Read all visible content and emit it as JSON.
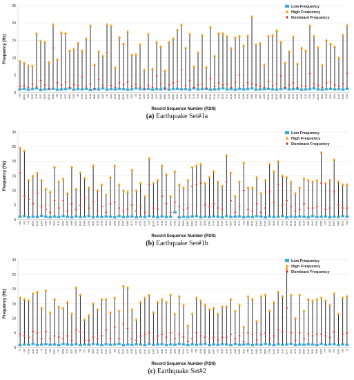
{
  "panels": [
    {
      "caption_letter": "(a)",
      "caption_text": "Earthquake Set#1a",
      "chart_data": {
        "type": "scatter",
        "ylabel": "Frequency (Hz)",
        "xlabel": "Record Sequence Number (RSN)",
        "ylim": [
          0,
          25
        ],
        "yticks": [
          0,
          5,
          10,
          15,
          20,
          25
        ],
        "grid": true,
        "legend_position": "top-right",
        "series": [
          {
            "name": "Low Frequency",
            "color": "#3fa9d6",
            "marker": "square"
          },
          {
            "name": "High Frequency",
            "color": "#f4a623",
            "marker": "triangle"
          },
          {
            "name": "Dominant Frequency",
            "color": "#e02b2b",
            "marker": "diamond"
          }
        ],
        "x": [
          "231",
          "12024",
          "823",
          "8150",
          "3113",
          "3767",
          "6633",
          "10512",
          "1080",
          "186",
          "3755",
          "4875",
          "6962",
          "7181",
          "736",
          "2784",
          "1099",
          "3126",
          "8880",
          "9084",
          "1164",
          "143",
          "1104",
          "1078",
          "19066",
          "10810",
          "4045",
          "7205",
          "725",
          "1318",
          "1153",
          "2633",
          "1086",
          "4875",
          "1062",
          "8060",
          "3113",
          "10060",
          "2090",
          "8188",
          "6665",
          "4013",
          "1176",
          "7290",
          "4089",
          "6665",
          "10512",
          "1313",
          "7245",
          "5678",
          "3747",
          "1315",
          "1148",
          "4876",
          "1086",
          "5040",
          "9060",
          "7262",
          "1187",
          "4483",
          "12024",
          "1041",
          "10810",
          "5088",
          "3267",
          "8612",
          "1176",
          "13256",
          "4843",
          "3113",
          "2784",
          "7030",
          "12024",
          "8000",
          "9160",
          "3091",
          "1104",
          "1044",
          "1084",
          "3755"
        ],
        "low": [
          0.9,
          1.1,
          0.8,
          1.0,
          1.2,
          0.7,
          0.9,
          1.0,
          1.1,
          0.8,
          0.9,
          1.0,
          1.2,
          0.8,
          1.0,
          0.9,
          1.1,
          0.7,
          1.0,
          0.9,
          1.2,
          0.8,
          1.0,
          0.9,
          1.1,
          1.0,
          0.8,
          0.9,
          1.2,
          1.0,
          0.9,
          1.1,
          0.8,
          1.0,
          0.9,
          1.2,
          0.8,
          1.0,
          1.1,
          0.9,
          1.0,
          0.8,
          1.2,
          0.9,
          1.0,
          1.1,
          0.8,
          0.9,
          1.0,
          1.2,
          0.9,
          1.0,
          0.8,
          1.1,
          0.9,
          1.0,
          1.2,
          0.8,
          0.9,
          1.0,
          1.1,
          0.9,
          0.8,
          1.0,
          1.2,
          0.9,
          1.0,
          1.1,
          0.8,
          0.9,
          1.0,
          1.2,
          0.9,
          0.8,
          1.0,
          1.1,
          0.9,
          1.0,
          0.8,
          1.1
        ],
        "high": [
          9.0,
          8.5,
          7.8,
          7.6,
          17.0,
          14.8,
          14.5,
          8.7,
          19.5,
          9.5,
          17.2,
          17.1,
          12.0,
          12.5,
          14.2,
          12.0,
          15.5,
          19.2,
          8.0,
          11.8,
          10.5,
          19.5,
          19.2,
          7.2,
          15.9,
          14.0,
          17.5,
          10.8,
          10.9,
          13.8,
          6.5,
          16.8,
          6.8,
          14.5,
          13.2,
          6.3,
          14.5,
          15.5,
          18.0,
          19.5,
          12.8,
          16.8,
          7.5,
          11.5,
          16.5,
          7.3,
          18.8,
          10.5,
          17.0,
          17.0,
          16.2,
          12.7,
          15.8,
          16.2,
          13.5,
          16.3,
          21.8,
          13.8,
          14.2,
          8.0,
          16.2,
          16.5,
          17.8,
          14.5,
          8.5,
          11.8,
          16.0,
          8.3,
          12.8,
          12.0,
          19.2,
          16.2,
          13.0,
          7.9,
          15.0,
          14.0,
          13.2,
          10.0,
          16.5,
          19.3
        ],
        "dominant": [
          1.8,
          2.0,
          1.5,
          2.5,
          1.8,
          3.5,
          2.2,
          1.2,
          12.8,
          2.8,
          2.2,
          3.0,
          1.5,
          2.3,
          2.0,
          4.5,
          1.8,
          2.5,
          1.2,
          3.8,
          2.1,
          11.5,
          2.0,
          1.5,
          2.8,
          2.2,
          3.0,
          1.8,
          2.3,
          1.6,
          1.2,
          2.0,
          1.5,
          4.8,
          2.5,
          1.0,
          2.2,
          2.8,
          3.2,
          6.5,
          2.0,
          3.5,
          1.5,
          2.2,
          2.5,
          1.3,
          4.0,
          1.8,
          2.8,
          2.2,
          2.5,
          1.5,
          3.0,
          5.0,
          2.0,
          2.8,
          2.5,
          2.2,
          1.8,
          1.5,
          3.2,
          2.0,
          2.5,
          4.8,
          1.5,
          2.2,
          2.8,
          1.5,
          2.0,
          1.8,
          5.5,
          2.5,
          2.0,
          1.5,
          2.8,
          3.0,
          2.2,
          1.8,
          2.5,
          5.5
        ]
      }
    },
    {
      "caption_letter": "(b)",
      "caption_text": "Earthquake Set#1b",
      "chart_data": {
        "type": "scatter",
        "ylabel": "Frequency (Hz)",
        "xlabel": "Record Sequence Number (RSN)",
        "ylim": [
          0,
          30
        ],
        "yticks": [
          0,
          5,
          10,
          15,
          20,
          25,
          30
        ],
        "grid": true,
        "legend_position": "top-right",
        "series": [
          {
            "name": "Low Frequency",
            "color": "#3fa9d6",
            "marker": "square"
          },
          {
            "name": "High Frequency",
            "color": "#f4a623",
            "marker": "triangle"
          },
          {
            "name": "Dominant Frequency",
            "color": "#e02b2b",
            "marker": "diamond"
          }
        ],
        "x": [
          "960",
          "900",
          "754",
          "8109",
          "1042",
          "1084",
          "4066",
          "552",
          "3505",
          "1116",
          "3760",
          "1106",
          "4088",
          "2090",
          "8010",
          "1083",
          "2784",
          "1185",
          "1158",
          "5018",
          "9044",
          "4890",
          "9006",
          "3760",
          "2090",
          "1008",
          "3147",
          "812",
          "3750",
          "1033",
          "552",
          "11024",
          "1130",
          "3748",
          "5116",
          "2784",
          "7030",
          "1604",
          "2003",
          "1089",
          "1004",
          "3013",
          "4024",
          "1106",
          "1089",
          "3749",
          "1042",
          "2784",
          "1185",
          "4887",
          "1158",
          "3117",
          "552",
          "9008",
          "8130",
          "1004",
          "1089",
          "1033",
          "1106",
          "4890",
          "7205",
          "3512",
          "1163",
          "5678",
          "8010",
          "2090",
          "1116",
          "4088",
          "9044",
          "3760",
          "1083",
          "552",
          "1042",
          "3505",
          "4066",
          "8109",
          "960"
        ],
        "low": [
          1.0,
          1.2,
          0.8,
          1.0,
          0.9,
          1.3,
          1.0,
          0.8,
          1.1,
          0.9,
          1.2,
          1.0,
          0.8,
          1.1,
          0.9,
          1.0,
          1.2,
          0.8,
          1.0,
          0.9,
          1.1,
          1.0,
          0.8,
          1.2,
          0.9,
          1.0,
          1.1,
          0.8,
          1.0,
          0.9,
          1.2,
          1.0,
          0.8,
          1.1,
          0.9,
          1.0,
          2.5,
          0.8,
          1.0,
          0.9,
          1.1,
          1.2,
          0.8,
          1.0,
          0.9,
          1.1,
          1.0,
          0.8,
          1.2,
          0.9,
          1.0,
          1.1,
          0.8,
          1.0,
          0.9,
          1.2,
          1.0,
          0.8,
          1.1,
          0.9,
          1.0,
          1.2,
          0.8,
          1.0,
          0.9,
          1.1,
          1.0,
          0.8,
          1.2,
          0.9,
          1.0,
          1.1,
          0.8,
          1.0,
          0.9,
          1.2,
          1.0
        ],
        "high": [
          24.5,
          23.5,
          13.5,
          15.0,
          16.0,
          13.5,
          10.5,
          9.5,
          18.0,
          13.0,
          14.0,
          9.0,
          18.0,
          10.5,
          16.0,
          14.2,
          11.0,
          18.5,
          10.0,
          12.0,
          8.5,
          14.5,
          18.5,
          12.0,
          10.0,
          9.5,
          17.0,
          10.0,
          12.5,
          8.0,
          21.0,
          12.5,
          13.5,
          18.5,
          15.5,
          8.0,
          16.5,
          12.0,
          11.0,
          13.5,
          18.0,
          18.5,
          19.0,
          12.5,
          14.5,
          16.5,
          13.0,
          11.5,
          22.0,
          16.0,
          8.0,
          13.0,
          19.5,
          11.0,
          11.0,
          14.5,
          9.0,
          13.5,
          19.0,
          16.5,
          20.0,
          15.0,
          14.5,
          13.0,
          9.0,
          11.0,
          14.0,
          13.5,
          13.0,
          13.5,
          23.0,
          12.5,
          13.5,
          20.5,
          13.0,
          12.0,
          12.0
        ],
        "dominant": [
          16.0,
          8.0,
          7.0,
          5.5,
          9.0,
          4.5,
          3.5,
          2.5,
          6.5,
          4.0,
          6.5,
          3.0,
          5.5,
          3.5,
          5.0,
          7.5,
          4.0,
          6.0,
          3.0,
          4.5,
          2.5,
          5.5,
          6.0,
          4.0,
          3.0,
          3.5,
          5.0,
          3.0,
          4.5,
          2.5,
          12.0,
          4.0,
          3.5,
          8.0,
          5.5,
          2.5,
          6.0,
          4.5,
          3.5,
          4.0,
          11.5,
          12.0,
          12.5,
          5.0,
          4.5,
          5.5,
          4.0,
          3.5,
          13.0,
          6.5,
          2.5,
          4.5,
          10.0,
          3.5,
          3.0,
          5.5,
          2.5,
          4.0,
          9.5,
          6.0,
          12.0,
          5.0,
          6.5,
          4.5,
          3.0,
          3.5,
          5.5,
          4.0,
          4.0,
          4.5,
          12.5,
          3.5,
          4.0,
          9.5,
          5.0,
          4.0,
          4.0
        ]
      }
    },
    {
      "caption_letter": "(c)",
      "caption_text": "Earthquake Set#2",
      "chart_data": {
        "type": "scatter",
        "ylabel": "Frequency (Hz)",
        "xlabel": "Record Sequence Number (RSN)",
        "ylim": [
          0,
          30
        ],
        "yticks": [
          0,
          5,
          10,
          15,
          20,
          25,
          30
        ],
        "grid": true,
        "legend_position": "top-right",
        "series": [
          {
            "name": "Low Frequency",
            "color": "#3fa9d6",
            "marker": "square"
          },
          {
            "name": "High Frequency",
            "color": "#f4a623",
            "marker": "triangle"
          },
          {
            "name": "Dominant Frequency",
            "color": "#e02b2b",
            "marker": "diamond"
          }
        ],
        "x": [
          "72",
          "186",
          "1013",
          "4213",
          "3113",
          "76",
          "1048",
          "558",
          "1000",
          "575",
          "6158",
          "1170",
          "3547",
          "4480",
          "736",
          "552",
          "806",
          "1104",
          "4010",
          "3548",
          "1707",
          "1199",
          "900",
          "4047",
          "1044",
          "1190",
          "1138",
          "1077",
          "4033",
          "1041",
          "3547",
          "1004",
          "1147",
          "1190",
          "4213",
          "5015",
          "1185",
          "1086",
          "1044",
          "1176",
          "952",
          "828",
          "1198",
          "8188",
          "4000",
          "1004",
          "572",
          "1145",
          "1136",
          "3548",
          "4480",
          "1083",
          "3113",
          "558",
          "1013",
          "1082",
          "1138",
          "8008",
          "2784",
          "1044",
          "4213",
          "1199",
          "1077",
          "4047",
          "1170",
          "1190",
          "6158",
          "1041",
          "5015",
          "1185",
          "1000",
          "575",
          "806",
          "552",
          "1004",
          "186",
          "72"
        ],
        "low": [
          0.8,
          1.0,
          0.9,
          1.2,
          0.8,
          1.0,
          1.1,
          0.9,
          1.0,
          0.8,
          1.2,
          1.0,
          0.9,
          1.1,
          0.8,
          1.0,
          0.9,
          1.2,
          1.0,
          0.8,
          1.1,
          0.9,
          1.0,
          1.2,
          0.8,
          1.0,
          0.9,
          1.1,
          1.0,
          0.8,
          1.2,
          0.9,
          1.0,
          1.1,
          0.8,
          1.0,
          0.9,
          1.2,
          1.0,
          0.8,
          1.1,
          0.9,
          1.0,
          1.2,
          0.8,
          1.0,
          0.9,
          1.1,
          1.0,
          0.8,
          1.2,
          0.9,
          1.0,
          1.1,
          0.8,
          1.0,
          0.9,
          1.2,
          1.0,
          0.8,
          1.1,
          0.9,
          1.0,
          1.2,
          0.8,
          1.0,
          0.9,
          1.1,
          1.0,
          0.8,
          1.2,
          0.9,
          1.0,
          1.1,
          0.8,
          1.0,
          0.9
        ],
        "high": [
          17.0,
          16.5,
          16.0,
          18.5,
          19.0,
          13.5,
          19.5,
          12.0,
          16.5,
          14.0,
          13.5,
          15.5,
          11.5,
          20.5,
          18.0,
          9.5,
          11.0,
          15.0,
          13.0,
          16.5,
          16.5,
          12.0,
          17.0,
          12.5,
          21.0,
          20.5,
          13.0,
          9.5,
          15.5,
          17.0,
          18.0,
          12.0,
          15.5,
          16.5,
          15.5,
          18.0,
          11.5,
          17.5,
          14.5,
          7.5,
          11.5,
          17.0,
          16.0,
          14.5,
          13.0,
          13.5,
          11.5,
          14.0,
          14.0,
          16.5,
          12.5,
          14.5,
          7.0,
          17.5,
          16.5,
          9.0,
          17.5,
          18.0,
          12.5,
          15.5,
          19.0,
          17.5,
          27.0,
          18.0,
          10.0,
          18.0,
          12.5,
          16.5,
          16.0,
          16.5,
          17.0,
          16.0,
          14.5,
          18.5,
          11.5,
          17.0,
          17.5
        ],
        "dominant": [
          4.5,
          4.0,
          3.5,
          5.5,
          5.0,
          3.0,
          5.5,
          3.0,
          4.0,
          3.5,
          3.0,
          4.0,
          2.5,
          6.0,
          5.5,
          2.5,
          2.5,
          3.5,
          3.0,
          4.0,
          6.0,
          3.0,
          7.0,
          3.0,
          8.0,
          6.5,
          3.0,
          2.5,
          4.0,
          4.5,
          5.0,
          3.0,
          4.0,
          4.5,
          3.5,
          5.0,
          3.0,
          4.5,
          3.5,
          2.0,
          3.0,
          5.0,
          4.0,
          3.5,
          3.0,
          3.5,
          2.5,
          3.5,
          3.5,
          4.5,
          3.0,
          4.0,
          2.0,
          5.0,
          4.5,
          2.5,
          4.5,
          5.0,
          3.0,
          4.0,
          6.0,
          5.5,
          13.5,
          5.0,
          2.5,
          5.0,
          3.0,
          4.5,
          4.0,
          4.5,
          4.5,
          4.0,
          3.5,
          5.5,
          3.0,
          4.5,
          5.0
        ]
      }
    }
  ]
}
